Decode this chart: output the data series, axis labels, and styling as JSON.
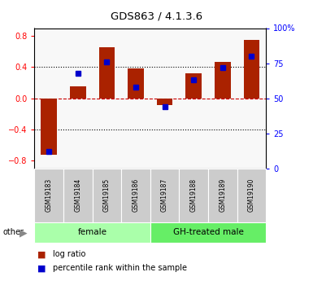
{
  "title": "GDS863 / 4.1.3.6",
  "samples": [
    "GSM19183",
    "GSM19184",
    "GSM19185",
    "GSM19186",
    "GSM19187",
    "GSM19188",
    "GSM19189",
    "GSM19190"
  ],
  "log_ratio": [
    -0.72,
    0.15,
    0.65,
    0.38,
    -0.09,
    0.32,
    0.47,
    0.75
  ],
  "percentile_rank": [
    12,
    68,
    76,
    58,
    44,
    63,
    72,
    80
  ],
  "groups": [
    {
      "label": "female",
      "start": 0,
      "end": 4,
      "color": "#aaffaa"
    },
    {
      "label": "GH-treated male",
      "start": 4,
      "end": 8,
      "color": "#66ee66"
    }
  ],
  "bar_color": "#aa2200",
  "dot_color": "#0000cc",
  "ylim_left": [
    -0.9,
    0.9
  ],
  "ylim_right": [
    0,
    100
  ],
  "yticks_left": [
    -0.8,
    -0.4,
    0.0,
    0.4,
    0.8
  ],
  "yticks_right": [
    0,
    25,
    50,
    75,
    100
  ],
  "ytick_labels_right": [
    "0",
    "25",
    "50",
    "75",
    "100%"
  ],
  "bg_color": "#ffffff",
  "hline_color": "#cc0000",
  "legend_items": [
    "log ratio",
    "percentile rank within the sample"
  ]
}
